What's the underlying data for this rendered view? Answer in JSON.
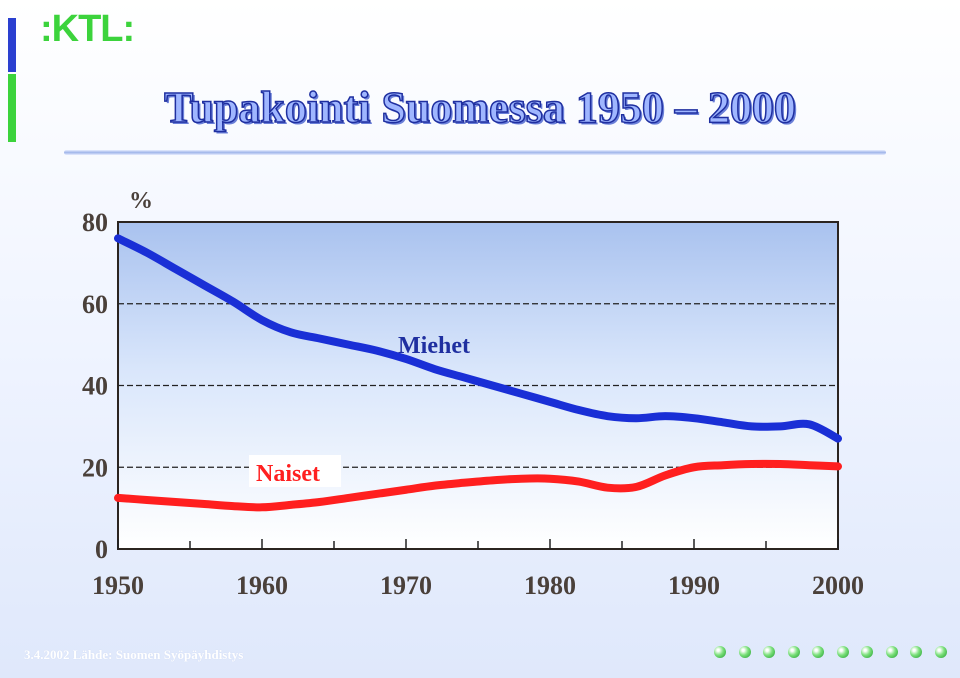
{
  "logo": {
    "text": ":KTL:"
  },
  "title": "Tupakointi Suomessa 1950 – 2000",
  "footer": {
    "text": "3.4.2002 Lähde: Suomen Syöpäyhdistys"
  },
  "colors": {
    "accent_blue": "#2a3fd0",
    "accent_green": "#3cd33c",
    "men_series": "#1a2fd6",
    "women_series": "#ff1f1f",
    "label_men": "#1f2fa0",
    "label_women": "#ff2020"
  },
  "nav_dots": 10,
  "chart_data": {
    "type": "line",
    "ylabel": "%",
    "ylim": [
      0,
      80
    ],
    "yticks": [
      0,
      20,
      40,
      60,
      80
    ],
    "xlim": [
      1950,
      2000
    ],
    "xticks": [
      1950,
      1960,
      1970,
      1980,
      1990,
      2000
    ],
    "grid": "dashed horizontal at 20, 40, 60",
    "series": [
      {
        "name": "Miehet",
        "x": [
          1950,
          1952,
          1954,
          1956,
          1958,
          1960,
          1962,
          1964,
          1966,
          1968,
          1970,
          1972,
          1974,
          1976,
          1978,
          1980,
          1982,
          1984,
          1986,
          1988,
          1990,
          1992,
          1994,
          1996,
          1998,
          2000
        ],
        "y": [
          76,
          72.5,
          68.5,
          64.5,
          60.5,
          56,
          53,
          51.5,
          50,
          48.5,
          46.5,
          44,
          42,
          40,
          38,
          36,
          34,
          32.5,
          32,
          32.5,
          32,
          31,
          30,
          30,
          30.5,
          27
        ]
      },
      {
        "name": "Naiset",
        "x": [
          1950,
          1952,
          1954,
          1956,
          1958,
          1960,
          1962,
          1964,
          1966,
          1968,
          1970,
          1972,
          1974,
          1976,
          1978,
          1980,
          1982,
          1984,
          1986,
          1988,
          1990,
          1992,
          1994,
          1996,
          1998,
          2000
        ],
        "y": [
          12.5,
          12,
          11.5,
          11,
          10.5,
          10.2,
          10.8,
          11.5,
          12.5,
          13.5,
          14.5,
          15.5,
          16.2,
          16.8,
          17.2,
          17.2,
          16.5,
          15,
          15.2,
          18,
          20,
          20.5,
          20.8,
          20.8,
          20.5,
          20.2
        ]
      }
    ]
  }
}
